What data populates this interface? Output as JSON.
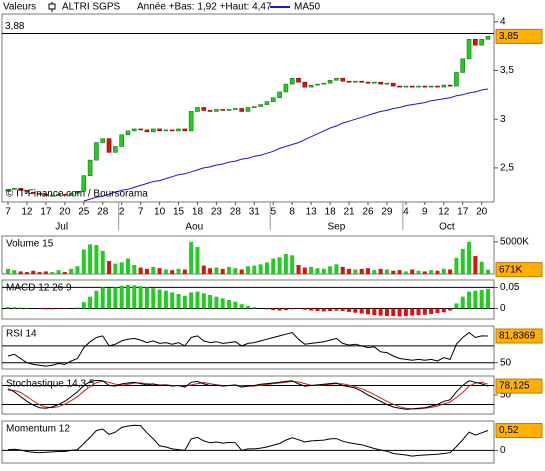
{
  "chart_data": [
    {
      "type": "candlestick",
      "header": "Valeurs",
      "subtitle": "Année +Bas: 1,92 +Haut: 4,47",
      "annotation": "© IT-Finance.com / Boursorama",
      "categories": [
        "7",
        null,
        null,
        "12",
        null,
        null,
        "17",
        null,
        null,
        "20",
        null,
        null,
        "25",
        null,
        null,
        "28",
        null,
        null,
        "2",
        null,
        null,
        "7",
        null,
        null,
        "10",
        null,
        null,
        "15",
        null,
        null,
        "18",
        null,
        null,
        "23",
        null,
        null,
        "28",
        null,
        null,
        "31",
        null,
        null,
        "5",
        null,
        null,
        "8",
        null,
        null,
        "13",
        null,
        null,
        "18",
        null,
        null,
        "21",
        null,
        null,
        "26",
        null,
        null,
        "29",
        null,
        null,
        "4",
        null,
        null,
        "9",
        null,
        null,
        "12",
        null,
        null,
        "17",
        null,
        null,
        "20",
        null
      ],
      "month_labels": [
        "Jul",
        "Aou",
        "Sep",
        "Oct"
      ],
      "up_color": "#22cc22",
      "down_color": "#dd1111",
      "series": [
        {
          "name": "ALTRI SGPS",
          "open": [
            2.26,
            2.28,
            2.29,
            2.27,
            2.25,
            2.24,
            2.23,
            2.22,
            2.22,
            2.23,
            2.22,
            2.24,
            2.26,
            2.42,
            2.58,
            2.76,
            2.8,
            2.66,
            2.72,
            2.84,
            2.88,
            2.9,
            2.89,
            2.87,
            2.9,
            2.88,
            2.89,
            2.88,
            2.9,
            2.88,
            3.08,
            3.12,
            3.09,
            3.08,
            3.1,
            3.09,
            3.1,
            3.11,
            3.08,
            3.12,
            3.13,
            3.15,
            3.18,
            3.22,
            3.28,
            3.36,
            3.42,
            3.38,
            3.33,
            3.35,
            3.36,
            3.37,
            3.4,
            3.42,
            3.39,
            3.38,
            3.39,
            3.38,
            3.37,
            3.38,
            3.36,
            3.37,
            3.34,
            3.33,
            3.34,
            3.33,
            3.34,
            3.33,
            3.34,
            3.33,
            3.35,
            3.34,
            3.48,
            3.62,
            3.82,
            3.76,
            3.82
          ],
          "close": [
            2.28,
            2.29,
            2.27,
            2.25,
            2.24,
            2.23,
            2.22,
            2.22,
            2.23,
            2.22,
            2.24,
            2.26,
            2.42,
            2.58,
            2.76,
            2.8,
            2.66,
            2.72,
            2.84,
            2.88,
            2.9,
            2.89,
            2.87,
            2.9,
            2.88,
            2.89,
            2.88,
            2.9,
            2.88,
            3.08,
            3.12,
            3.09,
            3.08,
            3.1,
            3.09,
            3.1,
            3.11,
            3.08,
            3.12,
            3.13,
            3.15,
            3.18,
            3.22,
            3.28,
            3.36,
            3.42,
            3.38,
            3.33,
            3.35,
            3.36,
            3.37,
            3.4,
            3.42,
            3.39,
            3.38,
            3.39,
            3.38,
            3.37,
            3.38,
            3.36,
            3.37,
            3.34,
            3.33,
            3.34,
            3.33,
            3.34,
            3.33,
            3.34,
            3.33,
            3.35,
            3.34,
            3.48,
            3.62,
            3.82,
            3.76,
            3.82,
            3.85
          ]
        }
      ],
      "ma": {
        "name": "MA50",
        "color": "#1a1acc",
        "values": [
          null,
          null,
          null,
          null,
          null,
          null,
          null,
          null,
          null,
          null,
          null,
          null,
          2.16,
          2.18,
          2.2,
          2.21,
          2.23,
          2.25,
          2.27,
          2.28,
          2.3,
          2.32,
          2.34,
          2.36,
          2.37,
          2.39,
          2.41,
          2.43,
          2.44,
          2.46,
          2.48,
          2.5,
          2.51,
          2.53,
          2.54,
          2.56,
          2.57,
          2.59,
          2.6,
          2.62,
          2.63,
          2.65,
          2.67,
          2.7,
          2.72,
          2.74,
          2.76,
          2.79,
          2.82,
          2.85,
          2.88,
          2.91,
          2.93,
          2.96,
          2.98,
          3.0,
          3.02,
          3.04,
          3.06,
          3.08,
          3.09,
          3.11,
          3.12,
          3.14,
          3.15,
          3.16,
          3.17,
          3.19,
          3.2,
          3.21,
          3.22,
          3.24,
          3.25,
          3.27,
          3.28,
          3.3,
          3.31
        ]
      },
      "ylim": [
        2.15,
        4.08
      ],
      "yticks": [
        {
          "value": 2.5,
          "label": "2,5"
        },
        3,
        {
          "value": 3.5,
          "label": "3,5"
        },
        4
      ],
      "grid": false,
      "ref_line": {
        "value": 3.88,
        "label": "3,88"
      },
      "last_label": "3,85"
    },
    {
      "type": "volume",
      "name": "Volume 15",
      "up_color": "#22cc22",
      "down_color": "#dd1111",
      "values": [
        800,
        600,
        400,
        300,
        500,
        300,
        400,
        300,
        600,
        300,
        800,
        1200,
        3800,
        4600,
        4500,
        3600,
        2000,
        1600,
        1800,
        2400,
        1400,
        1000,
        800,
        1100,
        900,
        700,
        600,
        800,
        700,
        5000,
        4200,
        1300,
        900,
        1000,
        800,
        1100,
        900,
        700,
        1200,
        1300,
        1500,
        1800,
        2400,
        2600,
        3100,
        2900,
        1400,
        1000,
        1100,
        900,
        800,
        1200,
        1500,
        1100,
        800,
        700,
        800,
        900,
        600,
        800,
        700,
        500,
        600,
        400,
        700,
        500,
        400,
        600,
        500,
        800,
        700,
        2500,
        3900,
        5000,
        2800,
        1900,
        671
      ],
      "ylim": [
        0,
        5900
      ],
      "yticks": [
        {
          "value": 5000,
          "label": "5000K"
        }
      ],
      "grid": false,
      "last_label": "671K"
    },
    {
      "type": "bar",
      "name": "MACD 12 26 9",
      "up_color": "#22cc22",
      "down_color": "#dd1111",
      "values": [
        0.003,
        0.003,
        0.002,
        0.001,
        0,
        -0.001,
        -0.002,
        -0.002,
        -0.001,
        -0.001,
        0,
        0.002,
        0.015,
        0.028,
        0.042,
        0.05,
        0.048,
        0.05,
        0.054,
        0.056,
        0.055,
        0.053,
        0.05,
        0.048,
        0.045,
        0.042,
        0.038,
        0.034,
        0.03,
        0.038,
        0.04,
        0.036,
        0.032,
        0.028,
        0.024,
        0.02,
        0.016,
        0.01,
        0.006,
        0.003,
        0,
        -0.002,
        -0.004,
        -0.005,
        -0.004,
        -0.002,
        -0.001,
        -0.003,
        -0.005,
        -0.006,
        -0.007,
        -0.006,
        -0.005,
        -0.006,
        -0.008,
        -0.01,
        -0.012,
        -0.014,
        -0.016,
        -0.017,
        -0.018,
        -0.018,
        -0.019,
        -0.018,
        -0.017,
        -0.016,
        -0.015,
        -0.013,
        -0.011,
        -0.009,
        -0.005,
        0.012,
        0.028,
        0.04,
        0.042,
        0.044,
        0.046
      ],
      "ylim": [
        -0.025,
        0.0675
      ],
      "yticks": [
        {
          "value": 0.05,
          "label": "0,05"
        },
        0
      ],
      "grid": true
    },
    {
      "type": "line",
      "name": "RSI 14",
      "series": [
        {
          "color": "#000000",
          "values": [
            58,
            60,
            55,
            50,
            48,
            47,
            46,
            47,
            49,
            48,
            52,
            55,
            68,
            75,
            80,
            82,
            70,
            72,
            76,
            78,
            79,
            77,
            74,
            76,
            73,
            74,
            72,
            74,
            70,
            80,
            82,
            76,
            74,
            75,
            73,
            74,
            75,
            70,
            73,
            74,
            76,
            78,
            80,
            82,
            84,
            86,
            78,
            72,
            73,
            74,
            75,
            77,
            79,
            73,
            71,
            72,
            70,
            68,
            69,
            63,
            62,
            58,
            55,
            54,
            53,
            54,
            53,
            54,
            52,
            56,
            54,
            72,
            80,
            86,
            80,
            82,
            81.8369
          ]
        }
      ],
      "ylim": [
        42.5,
        93.75
      ],
      "yticks": [
        50
      ],
      "levels": [
        70
      ],
      "grid": true,
      "last_label": "81,8369"
    },
    {
      "type": "line",
      "name": "Stochastique 14,3,5",
      "series": [
        {
          "color": "#000000",
          "values": [
            70,
            60,
            45,
            30,
            18,
            10,
            8,
            12,
            20,
            30,
            45,
            60,
            80,
            92,
            96,
            95,
            80,
            78,
            85,
            88,
            90,
            86,
            82,
            85,
            80,
            82,
            78,
            80,
            75,
            90,
            93,
            85,
            80,
            82,
            78,
            80,
            82,
            75,
            78,
            80,
            84,
            86,
            88,
            90,
            93,
            95,
            85,
            78,
            80,
            82,
            84,
            86,
            88,
            80,
            76,
            72,
            62,
            50,
            40,
            30,
            20,
            12,
            8,
            5,
            6,
            8,
            10,
            15,
            20,
            30,
            35,
            60,
            80,
            95,
            90,
            85,
            78.125
          ]
        },
        {
          "color": "#cc2222",
          "values": [
            65,
            65,
            58,
            45,
            31,
            19,
            12,
            10,
            13,
            21,
            32,
            45,
            62,
            77,
            89,
            94,
            90,
            84,
            81,
            84,
            88,
            88,
            86,
            84,
            82,
            82,
            80,
            80,
            78,
            82,
            86,
            89,
            86,
            82,
            80,
            80,
            80,
            79,
            78,
            78,
            81,
            83,
            86,
            88,
            90,
            93,
            91,
            86,
            81,
            80,
            82,
            84,
            86,
            85,
            81,
            76,
            70,
            61,
            51,
            41,
            30,
            21,
            13,
            8,
            6,
            6,
            8,
            11,
            15,
            22,
            28,
            42,
            58,
            78,
            88,
            90,
            84
          ]
        }
      ],
      "ylim": [
        -10,
        110
      ],
      "yticks": [
        50
      ],
      "levels": [
        80,
        20
      ],
      "grid": false,
      "last_label": "78,125"
    },
    {
      "type": "line",
      "name": "Momentum 12",
      "series": [
        {
          "color": "#000000",
          "values": [
            0.02,
            0.03,
            0.01,
            -0.03,
            -0.05,
            -0.06,
            -0.05,
            -0.04,
            -0.03,
            -0.03,
            0,
            0.02,
            0.18,
            0.34,
            0.52,
            0.56,
            0.42,
            0.48,
            0.6,
            0.64,
            0.66,
            0.65,
            0.46,
            0.3,
            0.12,
            0.09,
            0.04,
            0.02,
            0,
            0.3,
            0.34,
            0.25,
            0.2,
            0.22,
            0.19,
            0.21,
            0.2,
            0,
            0.04,
            0.04,
            0.06,
            0.09,
            0.14,
            0.18,
            0.27,
            0.33,
            0.28,
            0.22,
            0.25,
            0.26,
            0.27,
            0.3,
            0.31,
            0.24,
            0.2,
            0.17,
            0.15,
            0.1,
            0.05,
            0.01,
            -0.02,
            -0.08,
            -0.1,
            -0.12,
            -0.15,
            -0.13,
            -0.12,
            -0.11,
            -0.1,
            -0.08,
            -0.06,
            0.1,
            0.28,
            0.48,
            0.4,
            0.46,
            0.52
          ]
        }
      ],
      "ylim": [
        -0.33,
        0.77
      ],
      "yticks": [
        0
      ],
      "grid": true,
      "last_label": "0,52"
    }
  ]
}
